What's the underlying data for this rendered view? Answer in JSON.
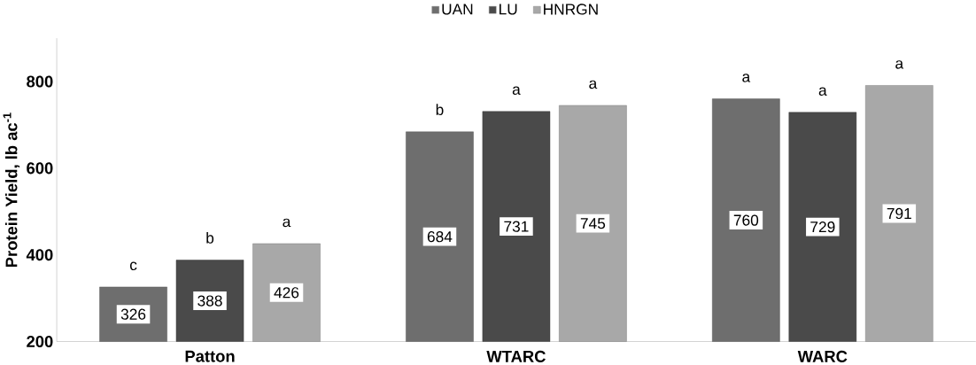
{
  "chart_data": {
    "type": "bar",
    "ylabel": "Protein Yield, lb ac$^{-1}$",
    "categories": [
      "Patton",
      "WTARC",
      "WARC"
    ],
    "series": [
      {
        "name": "UAN",
        "color": "#6e6e6e",
        "values": [
          326,
          684,
          760
        ]
      },
      {
        "name": "LU",
        "color": "#4a4a4a",
        "values": [
          388,
          731,
          729
        ]
      },
      {
        "name": "HNRGN",
        "color": "#a8a8a8",
        "values": [
          426,
          745,
          791
        ]
      }
    ],
    "ylim": [
      200,
      900
    ],
    "yticks": [
      200,
      400,
      600,
      800
    ],
    "grid": false,
    "legend": "top",
    "data_labels": true,
    "annotations": [
      "c",
      "b",
      "a",
      "b",
      "a",
      "a",
      "a",
      "a",
      "a"
    ]
  }
}
